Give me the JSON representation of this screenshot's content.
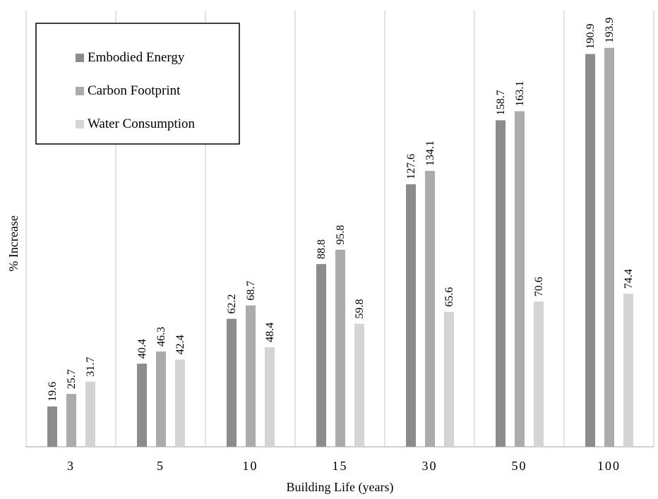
{
  "chart_data": {
    "type": "bar",
    "xlabel": "Building Life (years)",
    "ylabel": "% Increase",
    "ylim": [
      0,
      200
    ],
    "grid": "vertical separators between categories",
    "legend_position": "top-left",
    "categories": [
      "3",
      "5",
      "10",
      "15",
      "30",
      "50",
      "100"
    ],
    "series": [
      {
        "name": "Embodied Energy",
        "color": "#8c8c8c",
        "values": [
          19.6,
          40.4,
          62.2,
          88.8,
          127.6,
          158.7,
          190.9
        ]
      },
      {
        "name": "Carbon Footprint",
        "color": "#ababab",
        "values": [
          25.7,
          46.3,
          68.7,
          95.8,
          134.1,
          163.1,
          193.9
        ]
      },
      {
        "name": "Water Consumption",
        "color": "#d4d4d4",
        "values": [
          31.7,
          42.4,
          48.4,
          59.8,
          65.6,
          70.6,
          74.4
        ]
      }
    ]
  }
}
